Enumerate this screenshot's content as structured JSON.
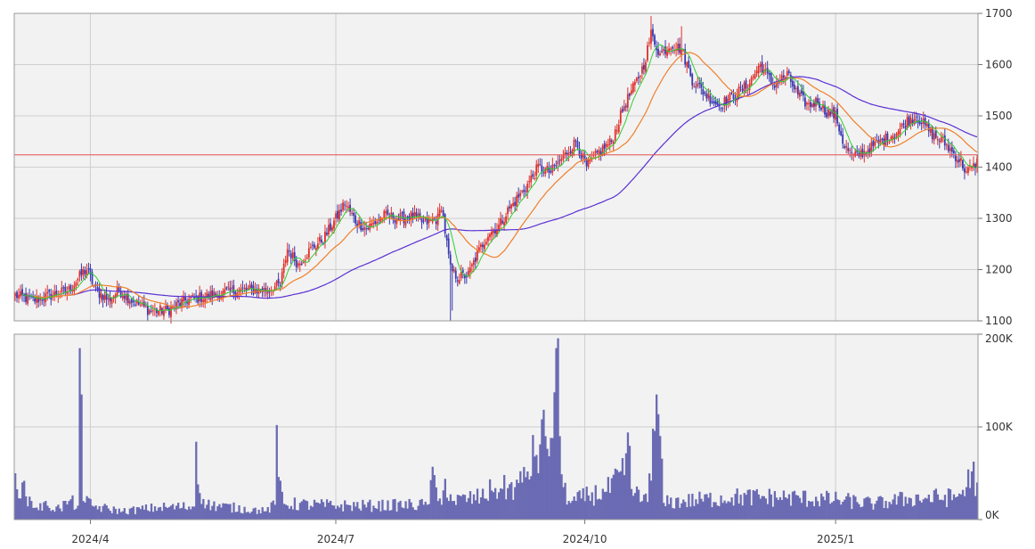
{
  "chart_data": {
    "type": "candlestick",
    "price_axis": {
      "ylim": [
        1100,
        1700
      ],
      "ticks": [
        "1700",
        "1600",
        "1500",
        "1400",
        "1300",
        "1200",
        "1100"
      ]
    },
    "volume_axis": {
      "ylim": [
        0,
        200000
      ],
      "ticks": [
        "200K",
        "100K",
        "0K"
      ]
    },
    "x_ticks": [
      "2024/4",
      "2024/7",
      "2024/10",
      "2025/1"
    ],
    "reference_line": 1424,
    "grid": true,
    "colors": {
      "up": "#e0302c",
      "down": "#3a3ab0",
      "volume": "#6b6bb4",
      "ma_short": "#33cc33",
      "ma_mid": "#f07f2a",
      "ma_long": "#5a2fd4",
      "reference": "#e05050",
      "panel": "#f2f2f2",
      "grid": "#cfcfcf"
    },
    "anchors": [
      [
        0,
        1150
      ],
      [
        10,
        1140
      ],
      [
        20,
        1150
      ],
      [
        30,
        1160
      ],
      [
        38,
        1195
      ],
      [
        40,
        1200
      ],
      [
        45,
        1160
      ],
      [
        52,
        1140
      ],
      [
        58,
        1160
      ],
      [
        65,
        1140
      ],
      [
        75,
        1120
      ],
      [
        85,
        1120
      ],
      [
        95,
        1140
      ],
      [
        110,
        1150
      ],
      [
        125,
        1160
      ],
      [
        140,
        1160
      ],
      [
        148,
        1170
      ],
      [
        152,
        1240
      ],
      [
        158,
        1210
      ],
      [
        165,
        1240
      ],
      [
        172,
        1260
      ],
      [
        180,
        1305
      ],
      [
        184,
        1330
      ],
      [
        190,
        1295
      ],
      [
        196,
        1280
      ],
      [
        206,
        1305
      ],
      [
        216,
        1300
      ],
      [
        222,
        1305
      ],
      [
        228,
        1290
      ],
      [
        236,
        1300
      ],
      [
        238,
        1325
      ],
      [
        243,
        1200
      ],
      [
        247,
        1185
      ],
      [
        253,
        1190
      ],
      [
        258,
        1230
      ],
      [
        264,
        1270
      ],
      [
        270,
        1285
      ],
      [
        275,
        1315
      ],
      [
        285,
        1360
      ],
      [
        292,
        1400
      ],
      [
        299,
        1390
      ],
      [
        306,
        1420
      ],
      [
        313,
        1450
      ],
      [
        319,
        1400
      ],
      [
        326,
        1430
      ],
      [
        333,
        1450
      ],
      [
        340,
        1520
      ],
      [
        346,
        1560
      ],
      [
        351,
        1600
      ],
      [
        355,
        1660
      ],
      [
        360,
        1620
      ],
      [
        366,
        1640
      ],
      [
        372,
        1630
      ],
      [
        378,
        1570
      ],
      [
        386,
        1540
      ],
      [
        393,
        1520
      ],
      [
        401,
        1540
      ],
      [
        409,
        1560
      ],
      [
        416,
        1600
      ],
      [
        423,
        1560
      ],
      [
        431,
        1580
      ],
      [
        437,
        1540
      ],
      [
        443,
        1520
      ],
      [
        448,
        1530
      ],
      [
        452,
        1510
      ],
      [
        458,
        1500
      ],
      [
        463,
        1440
      ],
      [
        468,
        1420
      ],
      [
        474,
        1430
      ],
      [
        481,
        1445
      ],
      [
        488,
        1460
      ],
      [
        493,
        1470
      ],
      [
        498,
        1490
      ],
      [
        503,
        1500
      ],
      [
        508,
        1480
      ],
      [
        513,
        1460
      ],
      [
        518,
        1450
      ],
      [
        523,
        1430
      ],
      [
        528,
        1410
      ],
      [
        531,
        1390
      ],
      [
        535,
        1400
      ],
      [
        537,
        1410
      ]
    ],
    "volume_anchors": [
      [
        0,
        50000
      ],
      [
        6,
        25000
      ],
      [
        12,
        13000
      ],
      [
        18,
        15000
      ],
      [
        25,
        12000
      ],
      [
        30,
        20000
      ],
      [
        35,
        15000
      ],
      [
        36,
        185000
      ],
      [
        37,
        135000
      ],
      [
        38,
        20000
      ],
      [
        44,
        14000
      ],
      [
        60,
        9000
      ],
      [
        80,
        13000
      ],
      [
        100,
        14000
      ],
      [
        101,
        84000
      ],
      [
        102,
        38000
      ],
      [
        107,
        16000
      ],
      [
        140,
        9000
      ],
      [
        145,
        16000
      ],
      [
        146,
        102000
      ],
      [
        147,
        46000
      ],
      [
        150,
        17000
      ],
      [
        180,
        15000
      ],
      [
        200,
        15000
      ],
      [
        230,
        16000
      ],
      [
        234,
        48000
      ],
      [
        236,
        20000
      ],
      [
        238,
        16000
      ],
      [
        240,
        44000
      ],
      [
        244,
        20000
      ],
      [
        260,
        24000
      ],
      [
        268,
        34000
      ],
      [
        272,
        33000
      ],
      [
        279,
        35000
      ],
      [
        283,
        40000
      ],
      [
        290,
        68000
      ],
      [
        296,
        90000
      ],
      [
        300,
        88000
      ],
      [
        302,
        185000
      ],
      [
        304,
        90000
      ],
      [
        306,
        35000
      ],
      [
        310,
        18000
      ],
      [
        320,
        26000
      ],
      [
        330,
        30000
      ],
      [
        340,
        48000
      ],
      [
        342,
        94000
      ],
      [
        344,
        33000
      ],
      [
        350,
        20000
      ],
      [
        355,
        42000
      ],
      [
        358,
        135000
      ],
      [
        362,
        18000
      ],
      [
        400,
        24000
      ],
      [
        430,
        24000
      ],
      [
        460,
        21000
      ],
      [
        480,
        17000
      ],
      [
        500,
        23000
      ],
      [
        525,
        24000
      ],
      [
        531,
        35000
      ],
      [
        534,
        52000
      ],
      [
        537,
        40000
      ]
    ]
  }
}
